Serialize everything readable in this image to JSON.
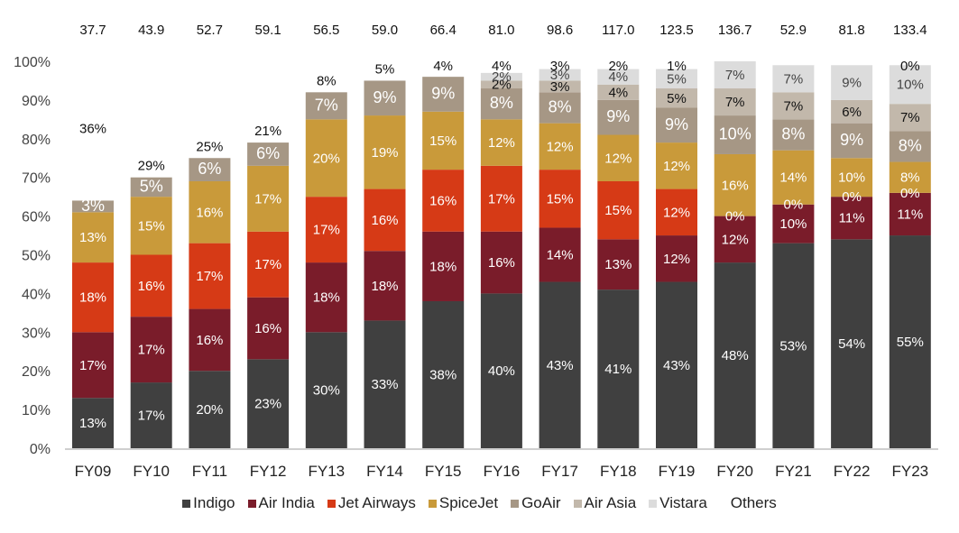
{
  "chart_data": {
    "type": "bar",
    "stacked": true,
    "title": "",
    "xlabel": "",
    "ylabel": "",
    "ylim": [
      0,
      100
    ],
    "yticks": [
      "0%",
      "10%",
      "20%",
      "30%",
      "40%",
      "50%",
      "60%",
      "70%",
      "80%",
      "90%",
      "100%"
    ],
    "grid": false,
    "legend_position": "bottom",
    "categories": [
      "FY09",
      "FY10",
      "FY11",
      "FY12",
      "FY13",
      "FY14",
      "FY15",
      "FY16",
      "FY17",
      "FY18",
      "FY19",
      "FY20",
      "FY21",
      "FY22",
      "FY23"
    ],
    "totals_label": "",
    "totals": [
      "37.7",
      "43.9",
      "52.7",
      "59.1",
      "56.5",
      "59.0",
      "66.4",
      "81.0",
      "98.6",
      "117.0",
      "123.5",
      "136.7",
      "52.9",
      "81.8",
      "133.4"
    ],
    "series": [
      {
        "name": "Indigo",
        "color": "#404040",
        "label_color": "#ffffff",
        "values": [
          13,
          17,
          20,
          23,
          30,
          33,
          38,
          40,
          43,
          41,
          43,
          48,
          53,
          54,
          55
        ]
      },
      {
        "name": "Air India",
        "color": "#7a1c2a",
        "label_color": "#ffffff",
        "values": [
          17,
          17,
          16,
          16,
          18,
          18,
          18,
          16,
          14,
          13,
          12,
          12,
          10,
          11,
          11
        ]
      },
      {
        "name": "Jet Airways",
        "color": "#d63a16",
        "label_color": "#ffffff",
        "values": [
          18,
          16,
          17,
          17,
          17,
          16,
          16,
          17,
          15,
          15,
          12,
          0,
          0,
          0,
          0
        ]
      },
      {
        "name": "SpiceJet",
        "color": "#c99a3a",
        "label_color": "#ffffff",
        "values": [
          13,
          15,
          16,
          17,
          20,
          19,
          15,
          12,
          12,
          12,
          12,
          16,
          14,
          10,
          8
        ]
      },
      {
        "name": "GoAir",
        "color": "#a69785",
        "label_color": "#ffffff",
        "values": [
          3,
          5,
          6,
          6,
          7,
          9,
          9,
          8,
          8,
          9,
          9,
          10,
          8,
          9,
          8
        ]
      },
      {
        "name": "Air Asia",
        "color": "#c2b8ab",
        "label_color": "#111111",
        "values": [
          null,
          null,
          null,
          null,
          null,
          null,
          null,
          2,
          3,
          4,
          5,
          7,
          7,
          6,
          7
        ]
      },
      {
        "name": "Vistara",
        "color": "#dcdcdc",
        "label_color": "#444444",
        "values": [
          null,
          null,
          null,
          null,
          null,
          null,
          null,
          2,
          3,
          4,
          5,
          7,
          7,
          9,
          10
        ]
      },
      {
        "name": "Others",
        "color": "#ffffff",
        "label_color": "#111111",
        "values": [
          36,
          29,
          25,
          21,
          8,
          5,
          4,
          4,
          3,
          2,
          1,
          null,
          null,
          null,
          0
        ]
      }
    ]
  }
}
